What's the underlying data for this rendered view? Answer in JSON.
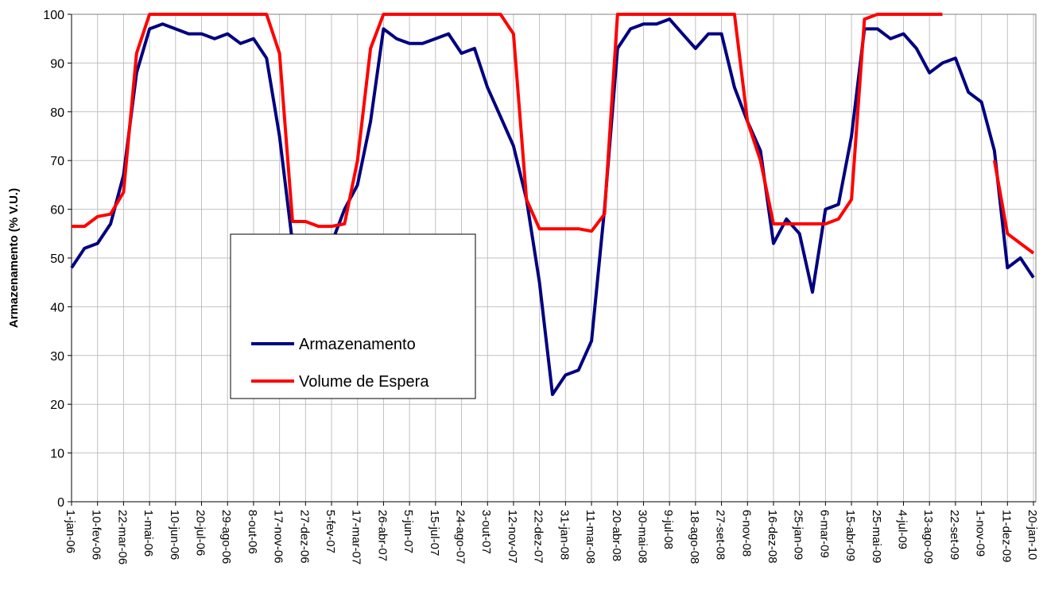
{
  "chart_data": {
    "type": "line",
    "y_label": "Armazenamento (% V.U.)",
    "x": [
      "1-jan-06",
      "21-jan-06",
      "10-fev-06",
      "2-mar-06",
      "22-mar-06",
      "11-abr-06",
      "1-mai-06",
      "21-mai-06",
      "10-jun-06",
      "30-jun-06",
      "20-jul-06",
      "9-ago-06",
      "29-ago-06",
      "18-set-06",
      "8-out-06",
      "28-out-06",
      "17-nov-06",
      "7-dez-06",
      "27-dez-06",
      "16-jan-07",
      "5-fev-07",
      "25-fev-07",
      "17-mar-07",
      "6-abr-07",
      "26-abr-07",
      "16-mai-07",
      "5-jun-07",
      "25-jun-07",
      "15-jul-07",
      "4-ago-07",
      "24-ago-07",
      "13-set-07",
      "3-out-07",
      "23-out-07",
      "12-nov-07",
      "2-dez-07",
      "22-dez-07",
      "11-jan-08",
      "31-jan-08",
      "20-fev-08",
      "11-mar-08",
      "31-mar-08",
      "20-abr-08",
      "10-mai-08",
      "30-mai-08",
      "19-jun-08",
      "9-jul-08",
      "29-jul-08",
      "18-ago-08",
      "7-set-08",
      "27-set-08",
      "17-out-08",
      "6-nov-08",
      "26-nov-08",
      "16-dez-08",
      "5-jan-09",
      "25-jan-09",
      "14-fev-09",
      "6-mar-09",
      "26-mar-09",
      "15-abr-09",
      "5-mai-09",
      "25-mai-09",
      "14-jun-09",
      "4-jul-09",
      "24-jul-09",
      "13-ago-09",
      "2-set-09",
      "22-set-09",
      "12-out-09",
      "1-nov-09",
      "21-nov-09",
      "11-dez-09",
      "31-dez-09",
      "20-jan-10"
    ],
    "xlim": [
      "1-jan-06",
      "20-jan-10"
    ],
    "xticks": [
      "1-jan-06",
      "10-fev-06",
      "22-mar-06",
      "1-mai-06",
      "10-jun-06",
      "20-jul-06",
      "29-ago-06",
      "8-out-06",
      "17-nov-06",
      "27-dez-06",
      "5-fev-07",
      "17-mar-07",
      "26-abr-07",
      "5-jun-07",
      "15-jul-07",
      "24-ago-07",
      "3-out-07",
      "12-nov-07",
      "22-dez-07",
      "31-jan-08",
      "11-mar-08",
      "20-abr-08",
      "30-mai-08",
      "9-jul-08",
      "18-ago-08",
      "27-set-08",
      "6-nov-08",
      "16-dez-08",
      "25-jan-09",
      "6-mar-09",
      "15-abr-09",
      "25-mai-09",
      "4-jul-09",
      "13-ago-09",
      "22-set-09",
      "1-nov-09",
      "11-dez-09",
      "20-jan-10"
    ],
    "ylim": [
      0,
      100
    ],
    "yticks": [
      0,
      10,
      20,
      30,
      40,
      50,
      60,
      70,
      80,
      90,
      100
    ],
    "grid": true,
    "series": [
      {
        "name": "Armazenamento",
        "color": "#000080",
        "values": [
          48,
          52,
          53,
          57,
          67,
          88,
          97,
          98,
          97,
          96,
          96,
          95,
          96,
          94,
          95,
          91,
          75,
          53,
          52,
          54,
          53,
          60,
          65,
          78,
          97,
          95,
          94,
          94,
          95,
          96,
          92,
          93,
          85,
          79,
          73,
          62,
          45,
          22,
          26,
          27,
          33,
          60,
          93,
          97,
          98,
          98,
          99,
          96,
          93,
          96,
          96,
          85,
          78,
          72,
          53,
          58,
          55,
          43,
          60,
          61,
          75,
          97,
          97,
          95,
          96,
          93,
          88,
          90,
          91,
          84,
          82,
          72,
          48,
          50,
          46
        ]
      },
      {
        "name": "Volume de Espera",
        "color": "#ff0000",
        "values": [
          56.5,
          56.5,
          58.5,
          59,
          63.5,
          92,
          100,
          100,
          100,
          100,
          100,
          100,
          100,
          100,
          100,
          100,
          92,
          57.5,
          57.5,
          56.5,
          56.5,
          57,
          70,
          93,
          100,
          100,
          100,
          100,
          100,
          100,
          100,
          100,
          100,
          100,
          96,
          62,
          56,
          56,
          56,
          56,
          55.5,
          59,
          100,
          100,
          100,
          100,
          100,
          100,
          100,
          100,
          100,
          100,
          78,
          70,
          57,
          57,
          57,
          57,
          57,
          58,
          62,
          99,
          100,
          100,
          100,
          100,
          100,
          100,
          null,
          null,
          null,
          70,
          55,
          53,
          51
        ]
      }
    ]
  }
}
